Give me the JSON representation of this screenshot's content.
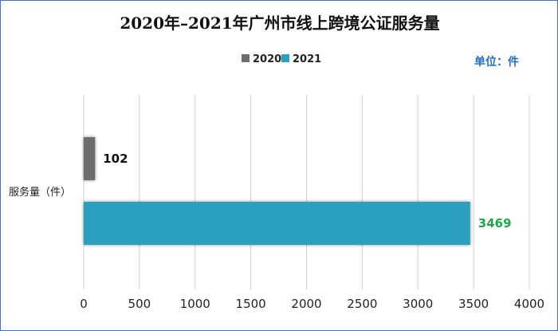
{
  "chart_data": {
    "type": "bar",
    "orientation": "horizontal",
    "title": "2020年–2021年广州市线上跨境公证服务量",
    "unit_label": "单位：件",
    "categories": [
      "服务量（件）"
    ],
    "series": [
      {
        "name": "2020",
        "values": [
          102
        ],
        "color": "#6d6d6d",
        "label_color": "#111111"
      },
      {
        "name": "2021",
        "values": [
          3469
        ],
        "color": "#2ca0be",
        "label_color": "#1ea84a"
      }
    ],
    "x_ticks": [
      "0",
      "500",
      "1000",
      "1500",
      "2000",
      "2500",
      "3000",
      "3500",
      "4000"
    ],
    "xlim": [
      0,
      4000
    ],
    "grid": true,
    "legend_position": "top-center"
  }
}
